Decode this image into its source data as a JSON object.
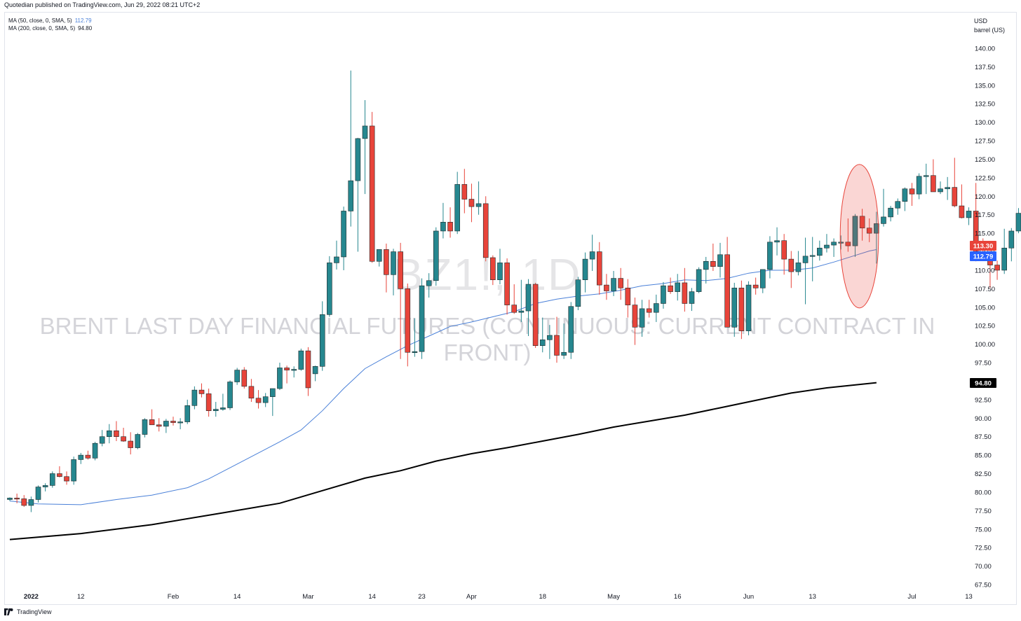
{
  "header": {
    "published": "Quotedian published on TradingView.com, Jun 29, 2022 08:21 UTC+2"
  },
  "legend": {
    "ma50_label": "MA (50, close, 0, SMA, 5)",
    "ma50_value": "112.79",
    "ma200_label": "MA (200, close, 0, SMA, 5)",
    "ma200_value": "94.80"
  },
  "watermark": {
    "symbol": "BZ1!, 1D",
    "description": "BRENT LAST DAY FINANCIAL FUTURES (CONTINUOUS: CURRENT CONTRACT IN FRONT)"
  },
  "yaxis": {
    "currency": "USD",
    "unit": "barrel (US)"
  },
  "footer": {
    "brand": "TradingView"
  },
  "colors": {
    "up": "#26878f",
    "down": "#e8443a",
    "ma50": "#4a80d8",
    "ma200": "#000000",
    "ellipse": "#e8443a"
  },
  "price_tags": {
    "last": "113.30",
    "ma50": "112.79",
    "ma200": "94.80"
  },
  "chart_data": {
    "type": "candlestick",
    "ylim": [
      66,
      142
    ],
    "y_ticks": [
      "67.50",
      "70.00",
      "72.50",
      "75.00",
      "77.50",
      "80.00",
      "82.50",
      "85.00",
      "87.50",
      "90.00",
      "92.50",
      "95.00",
      "97.50",
      "100.00",
      "102.50",
      "105.00",
      "107.50",
      "110.00",
      "112.50",
      "115.00",
      "117.50",
      "120.00",
      "122.50",
      "125.00",
      "127.50",
      "130.00",
      "132.50",
      "135.00",
      "137.50",
      "140.00"
    ],
    "x_ticks": [
      {
        "label": "2022",
        "i": 3,
        "bold": true
      },
      {
        "label": "12",
        "i": 10
      },
      {
        "label": "Feb",
        "i": 23
      },
      {
        "label": "14",
        "i": 32
      },
      {
        "label": "Mar",
        "i": 42
      },
      {
        "label": "14",
        "i": 51
      },
      {
        "label": "23",
        "i": 58
      },
      {
        "label": "Apr",
        "i": 65
      },
      {
        "label": "18",
        "i": 75
      },
      {
        "label": "May",
        "i": 85
      },
      {
        "label": "16",
        "i": 94
      },
      {
        "label": "Jun",
        "i": 104
      },
      {
        "label": "13",
        "i": 113
      },
      {
        "label": "Jul",
        "i": 127
      },
      {
        "label": "13",
        "i": 135
      }
    ],
    "candles": [
      [
        79.0,
        79.3,
        78.8,
        79.2
      ],
      [
        79.2,
        79.8,
        78.5,
        79.1
      ],
      [
        79.1,
        79.6,
        78.0,
        78.2
      ],
      [
        78.2,
        79.4,
        77.3,
        79.0
      ],
      [
        79.0,
        80.9,
        78.6,
        80.7
      ],
      [
        80.7,
        81.2,
        80.1,
        80.9
      ],
      [
        80.9,
        82.8,
        80.6,
        82.5
      ],
      [
        82.5,
        83.5,
        82.0,
        82.1
      ],
      [
        82.1,
        82.8,
        81.0,
        81.5
      ],
      [
        81.5,
        84.8,
        81.0,
        84.4
      ],
      [
        84.4,
        85.3,
        83.8,
        85.0
      ],
      [
        85.0,
        85.6,
        84.4,
        84.6
      ],
      [
        84.6,
        86.8,
        84.3,
        86.6
      ],
      [
        86.6,
        88.4,
        86.2,
        87.5
      ],
      [
        87.5,
        89.2,
        86.6,
        88.3
      ],
      [
        88.3,
        89.6,
        86.9,
        87.5
      ],
      [
        87.5,
        88.7,
        86.8,
        86.9
      ],
      [
        86.9,
        88.1,
        85.1,
        86.0
      ],
      [
        86.0,
        88.0,
        85.8,
        87.8
      ],
      [
        87.8,
        90.0,
        87.4,
        89.8
      ],
      [
        89.8,
        91.2,
        89.2,
        89.1
      ],
      [
        89.1,
        90.0,
        88.2,
        88.9
      ],
      [
        88.9,
        89.9,
        88.0,
        89.6
      ],
      [
        89.6,
        90.2,
        89.0,
        89.4
      ],
      [
        89.4,
        90.0,
        88.5,
        89.5
      ],
      [
        89.5,
        92.5,
        89.2,
        91.7
      ],
      [
        91.7,
        94.3,
        91.2,
        93.8
      ],
      [
        93.8,
        94.7,
        92.8,
        93.3
      ],
      [
        93.3,
        94.0,
        90.2,
        91.0
      ],
      [
        91.0,
        92.2,
        90.2,
        91.2
      ],
      [
        91.2,
        93.3,
        91.0,
        91.4
      ],
      [
        91.4,
        95.1,
        91.1,
        94.9
      ],
      [
        94.9,
        96.8,
        94.5,
        96.5
      ],
      [
        96.5,
        96.9,
        94.0,
        94.3
      ],
      [
        94.3,
        95.3,
        92.2,
        92.7
      ],
      [
        92.7,
        93.8,
        91.3,
        92.1
      ],
      [
        92.1,
        93.4,
        91.5,
        92.9
      ],
      [
        92.9,
        94.0,
        90.3,
        94.0
      ],
      [
        94.0,
        97.5,
        93.8,
        96.8
      ],
      [
        96.8,
        97.1,
        94.7,
        96.5
      ],
      [
        96.5,
        97.0,
        95.5,
        96.6
      ],
      [
        96.6,
        99.4,
        96.4,
        99.1
      ],
      [
        99.1,
        99.6,
        93.0,
        94.1
      ],
      [
        96.0,
        97.1,
        95.0,
        97.0
      ],
      [
        97.0,
        105.8,
        96.4,
        104.0
      ],
      [
        104.0,
        111.9,
        103.7,
        111.0
      ],
      [
        111.0,
        114.0,
        110.1,
        111.8
      ],
      [
        111.8,
        118.6,
        110.0,
        118.0
      ],
      [
        118.0,
        137.0,
        115.9,
        122.1
      ],
      [
        122.1,
        127.9,
        112.5,
        127.8
      ],
      [
        127.8,
        133.0,
        120.3,
        129.5
      ],
      [
        129.5,
        131.4,
        111.0,
        111.2
      ],
      [
        111.2,
        112.5,
        110.5,
        112.8
      ],
      [
        112.8,
        113.6,
        107.0,
        109.4
      ],
      [
        109.4,
        112.9,
        106.6,
        112.5
      ],
      [
        112.5,
        113.7,
        98.0,
        107.5
      ],
      [
        107.5,
        108.2,
        97.0,
        98.9
      ],
      [
        98.9,
        103.5,
        98.3,
        99.0
      ],
      [
        99.0,
        108.9,
        98.0,
        107.9
      ],
      [
        107.9,
        109.6,
        106.3,
        108.6
      ],
      [
        108.6,
        115.8,
        107.9,
        115.3
      ],
      [
        115.3,
        119.1,
        114.3,
        116.5
      ],
      [
        116.5,
        118.5,
        114.4,
        115.3
      ],
      [
        115.3,
        123.3,
        114.9,
        121.6
      ],
      [
        121.6,
        123.7,
        117.7,
        119.6
      ],
      [
        119.6,
        121.7,
        116.5,
        118.6
      ],
      [
        118.6,
        122.0,
        117.5,
        119.0
      ],
      [
        119.0,
        120.0,
        111.2,
        111.7
      ],
      [
        111.7,
        112.0,
        108.0,
        108.7
      ],
      [
        108.7,
        112.9,
        108.1,
        111.0
      ],
      [
        111.0,
        111.6,
        104.0,
        105.3
      ],
      [
        105.3,
        108.1,
        104.1,
        104.3
      ],
      [
        104.3,
        108.7,
        103.0,
        104.5
      ],
      [
        104.5,
        108.8,
        101.1,
        108.1
      ],
      [
        108.1,
        108.3,
        99.5,
        99.8
      ],
      [
        99.8,
        103.6,
        98.9,
        100.6
      ],
      [
        100.6,
        102.6,
        98.0,
        101.2
      ],
      [
        101.2,
        103.7,
        97.5,
        98.5
      ],
      [
        98.5,
        102.8,
        98.0,
        98.9
      ],
      [
        98.9,
        105.7,
        98.0,
        105.1
      ],
      [
        105.1,
        109.1,
        104.6,
        108.7
      ],
      [
        108.7,
        112.4,
        107.0,
        111.5
      ],
      [
        111.5,
        114.8,
        109.9,
        112.5
      ],
      [
        112.5,
        113.8,
        106.7,
        108.0
      ],
      [
        108.0,
        109.5,
        106.0,
        107.2
      ],
      [
        107.2,
        109.9,
        106.5,
        108.9
      ],
      [
        108.9,
        110.3,
        106.0,
        107.6
      ],
      [
        107.6,
        108.8,
        103.6,
        105.3
      ],
      [
        105.3,
        106.3,
        99.9,
        102.3
      ],
      [
        102.3,
        106.0,
        101.0,
        104.8
      ],
      [
        104.8,
        106.0,
        103.6,
        104.3
      ],
      [
        104.3,
        106.7,
        103.0,
        105.5
      ],
      [
        105.5,
        108.4,
        104.8,
        107.9
      ],
      [
        107.9,
        109.0,
        106.8,
        107.1
      ],
      [
        107.1,
        109.5,
        105.9,
        108.3
      ],
      [
        108.3,
        110.3,
        104.4,
        105.5
      ],
      [
        105.5,
        107.6,
        104.5,
        107.1
      ],
      [
        107.1,
        110.4,
        106.9,
        110.1
      ],
      [
        110.1,
        111.8,
        108.2,
        111.2
      ],
      [
        111.2,
        113.6,
        109.9,
        110.5
      ],
      [
        110.5,
        113.7,
        109.0,
        112.1
      ],
      [
        112.1,
        114.5,
        102.5,
        102.3
      ],
      [
        102.3,
        108.3,
        101.0,
        107.6
      ],
      [
        107.6,
        108.6,
        100.7,
        101.8
      ],
      [
        101.8,
        108.5,
        101.2,
        108.0
      ],
      [
        108.0,
        109.0,
        106.7,
        107.6
      ],
      [
        107.6,
        110.0,
        106.9,
        110.1
      ],
      [
        110.1,
        114.6,
        108.9,
        113.8
      ],
      [
        113.8,
        115.8,
        112.0,
        114.0
      ],
      [
        114.0,
        114.9,
        109.4,
        111.5
      ],
      [
        111.5,
        112.6,
        107.6,
        109.8
      ],
      [
        109.8,
        112.6,
        109.3,
        111.0
      ],
      [
        111.0,
        114.4,
        105.4,
        111.9
      ],
      [
        111.9,
        114.5,
        108.5,
        112.0
      ],
      [
        112.0,
        114.0,
        111.3,
        113.0
      ],
      [
        113.0,
        114.9,
        112.4,
        113.4
      ],
      [
        113.4,
        114.3,
        111.8,
        113.8
      ],
      [
        113.8,
        114.7,
        112.8,
        113.8
      ],
      [
        113.8,
        117.0,
        112.5,
        113.3
      ],
      [
        113.3,
        117.6,
        111.8,
        117.3
      ],
      [
        117.3,
        118.3,
        114.0,
        115.7
      ],
      [
        115.7,
        117.0,
        113.8,
        115.0
      ],
      [
        115.0,
        117.9,
        110.9,
        116.3
      ],
      [
        116.3,
        121.0,
        115.9,
        117.2
      ],
      [
        117.2,
        118.7,
        116.6,
        118.4
      ],
      [
        118.4,
        119.7,
        117.5,
        119.3
      ],
      [
        119.3,
        121.2,
        118.0,
        121.0
      ],
      [
        121.0,
        121.8,
        118.7,
        120.3
      ],
      [
        120.3,
        123.1,
        119.6,
        122.7
      ],
      [
        122.7,
        124.4,
        120.3,
        122.8
      ],
      [
        122.8,
        125.0,
        120.6,
        120.6
      ],
      [
        120.6,
        122.0,
        120.3,
        121.0
      ],
      [
        121.0,
        122.6,
        119.5,
        121.2
      ],
      [
        121.2,
        125.2,
        118.5,
        118.7
      ],
      [
        118.7,
        121.6,
        117.0,
        117.1
      ],
      [
        117.1,
        118.5,
        116.1,
        118.0
      ],
      [
        118.0,
        121.8,
        111.2,
        112.5
      ],
      [
        112.5,
        114.3,
        111.6,
        112.4
      ],
      [
        112.4,
        113.3,
        107.6,
        110.7
      ],
      [
        110.7,
        111.3,
        108.7,
        110.0
      ],
      [
        110.0,
        115.6,
        109.5,
        113.0
      ],
      [
        113.0,
        115.7,
        111.2,
        115.3
      ],
      [
        115.3,
        118.4,
        115.0,
        117.7
      ],
      [
        113.6,
        114.6,
        112.6,
        113.3
      ]
    ],
    "ma50": [
      [
        0,
        78.8
      ],
      [
        4,
        78.4
      ],
      [
        10,
        78.3
      ],
      [
        15,
        79.0
      ],
      [
        20,
        79.6
      ],
      [
        25,
        80.6
      ],
      [
        28,
        81.8
      ],
      [
        32,
        83.8
      ],
      [
        35,
        85.3
      ],
      [
        38,
        86.8
      ],
      [
        41,
        88.4
      ],
      [
        44,
        91.0
      ],
      [
        47,
        94.0
      ],
      [
        50,
        96.7
      ],
      [
        53,
        98.3
      ],
      [
        56,
        99.8
      ],
      [
        59,
        101.1
      ],
      [
        62,
        102.4
      ],
      [
        65,
        103.0
      ],
      [
        68,
        103.7
      ],
      [
        71,
        104.4
      ],
      [
        74,
        105.5
      ],
      [
        77,
        106.1
      ],
      [
        80,
        106.5
      ],
      [
        83,
        106.8
      ],
      [
        86,
        107.3
      ],
      [
        89,
        107.9
      ],
      [
        92,
        108.2
      ],
      [
        95,
        108.7
      ],
      [
        98,
        108.6
      ],
      [
        101,
        108.9
      ],
      [
        104,
        109.6
      ],
      [
        107,
        110.0
      ],
      [
        110,
        110.0
      ],
      [
        113,
        110.3
      ],
      [
        116,
        111.1
      ],
      [
        119,
        112.0
      ],
      [
        121,
        112.6
      ],
      [
        122,
        112.79
      ]
    ],
    "ma200": [
      [
        0,
        73.6
      ],
      [
        10,
        74.4
      ],
      [
        20,
        75.6
      ],
      [
        30,
        77.2
      ],
      [
        38,
        78.5
      ],
      [
        44,
        80.2
      ],
      [
        50,
        81.9
      ],
      [
        55,
        82.9
      ],
      [
        60,
        84.2
      ],
      [
        65,
        85.2
      ],
      [
        70,
        86.0
      ],
      [
        75,
        86.9
      ],
      [
        80,
        87.8
      ],
      [
        85,
        88.8
      ],
      [
        90,
        89.6
      ],
      [
        95,
        90.4
      ],
      [
        100,
        91.4
      ],
      [
        105,
        92.4
      ],
      [
        110,
        93.4
      ],
      [
        115,
        94.1
      ],
      [
        122,
        94.8
      ]
    ],
    "highlight_ellipse": {
      "cx_index": 119.6,
      "cy_price": 114.6,
      "rx_bars": 2.7,
      "ry_price": 9.7
    }
  }
}
